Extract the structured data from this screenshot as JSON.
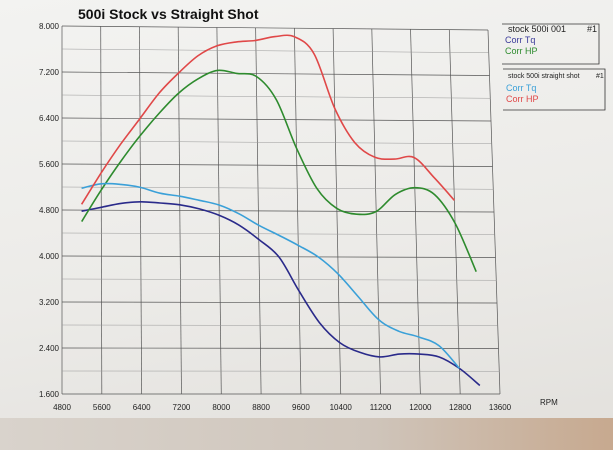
{
  "chart_data": {
    "type": "line",
    "title": "500i Stock vs Straight Shot",
    "xlabel": "RPM",
    "ylabel": "",
    "xlim": [
      4800,
      13600
    ],
    "ylim": [
      1.6,
      8.0
    ],
    "x_ticks": [
      "4800",
      "5600",
      "6400",
      "7200",
      "8000",
      "8800",
      "9600",
      "10400",
      "11200",
      "12000",
      "12800",
      "13600"
    ],
    "y_ticks": [
      "1.600",
      "2.400",
      "3.200",
      "4.000",
      "4.800",
      "5.600",
      "6.400",
      "7.200",
      "8.000"
    ],
    "legend_groups": [
      {
        "title": "stock 500i 001",
        "tag": "#1",
        "entries": [
          {
            "label": "Corr Tq",
            "color": "#3a3a9a"
          },
          {
            "label": "Corr HP",
            "color": "#2e8b2e"
          }
        ]
      },
      {
        "title": "stock 500i straight shot",
        "tag": "#1",
        "entries": [
          {
            "label": "Corr Tq",
            "color": "#3aa0d8"
          },
          {
            "label": "Corr HP",
            "color": "#e04848"
          }
        ]
      }
    ],
    "series": [
      {
        "name": "stock 500i 001 Corr Tq",
        "color": "#2a2a8a",
        "x": [
          5200,
          5600,
          6000,
          6400,
          6800,
          7200,
          7600,
          8000,
          8400,
          8800,
          9200,
          9600,
          10000,
          10400,
          10800,
          11200,
          11600,
          12000,
          12400,
          12800,
          13200
        ],
        "y": [
          4.78,
          4.85,
          4.92,
          4.95,
          4.93,
          4.9,
          4.83,
          4.72,
          4.55,
          4.3,
          4.0,
          3.4,
          2.85,
          2.5,
          2.33,
          2.25,
          2.3,
          2.3,
          2.25,
          2.05,
          1.75
        ]
      },
      {
        "name": "stock 500i 001 Corr HP",
        "color": "#2e8b2e",
        "x": [
          5200,
          5600,
          6000,
          6400,
          6800,
          7200,
          7600,
          8000,
          8400,
          8800,
          9200,
          9600,
          10000,
          10400,
          10800,
          11200,
          11600,
          12000,
          12400,
          12800,
          13200
        ],
        "y": [
          4.6,
          5.15,
          5.65,
          6.1,
          6.5,
          6.85,
          7.1,
          7.25,
          7.2,
          7.15,
          6.75,
          5.9,
          5.2,
          4.85,
          4.75,
          4.8,
          5.1,
          5.22,
          5.1,
          4.6,
          3.75
        ]
      },
      {
        "name": "stock 500i straight shot Corr Tq",
        "color": "#3aa0d8",
        "x": [
          5200,
          5600,
          6000,
          6400,
          6800,
          7200,
          7600,
          8000,
          8400,
          8800,
          9200,
          9600,
          10000,
          10400,
          10800,
          11200,
          11600,
          12000,
          12400,
          12800
        ],
        "y": [
          5.18,
          5.26,
          5.25,
          5.2,
          5.1,
          5.05,
          4.98,
          4.9,
          4.75,
          4.55,
          4.38,
          4.2,
          4.0,
          3.7,
          3.3,
          2.9,
          2.7,
          2.6,
          2.45,
          2.05
        ]
      },
      {
        "name": "stock 500i straight shot Corr HP",
        "color": "#e04848",
        "x": [
          5200,
          5600,
          6000,
          6400,
          6800,
          7200,
          7600,
          8000,
          8400,
          8800,
          9200,
          9600,
          10000,
          10400,
          10800,
          11200,
          11600,
          12000,
          12400,
          12800
        ],
        "y": [
          4.9,
          5.45,
          5.95,
          6.4,
          6.85,
          7.2,
          7.5,
          7.68,
          7.75,
          7.78,
          7.85,
          7.85,
          7.55,
          6.6,
          6.0,
          5.75,
          5.72,
          5.75,
          5.4,
          5.0
        ]
      }
    ]
  }
}
